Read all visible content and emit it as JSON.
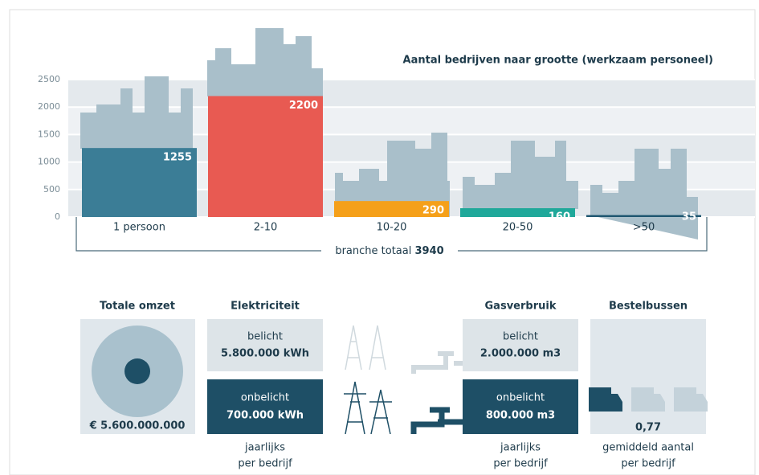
{
  "chart_data": {
    "type": "bar",
    "title": "Aantal bedrijven naar grootte (werkzaam personeel)",
    "categories": [
      "1 persoon",
      "2-10",
      "10-20",
      "20-50",
      ">50"
    ],
    "values": [
      1255,
      2200,
      290,
      160,
      35
    ],
    "colors": [
      "#3b7d96",
      "#e85a52",
      "#f5a01a",
      "#1fa89a",
      "#1e5670"
    ],
    "ylim": [
      0,
      2500
    ],
    "yticks": [
      0,
      500,
      1000,
      1500,
      2000,
      2500
    ],
    "grid": true,
    "total": {
      "label": "branche totaal",
      "value": 3940
    }
  },
  "omzet": {
    "title": "Totale omzet",
    "value": "€ 5.600.000.000"
  },
  "elektriciteit": {
    "title": "Elektriciteit",
    "belicht": {
      "label": "belicht",
      "value": "5.800.000 kWh"
    },
    "onbelicht": {
      "label": "onbelicht",
      "value": "700.000 kWh"
    },
    "note": [
      "jaarlijks",
      "per bedrijf"
    ]
  },
  "gas": {
    "title": "Gasverbruik",
    "belicht": {
      "label": "belicht",
      "value": "2.000.000 m3"
    },
    "onbelicht": {
      "label": "onbelicht",
      "value": "800.000 m3"
    },
    "note": [
      "jaarlijks",
      "per bedrijf"
    ]
  },
  "bestelbussen": {
    "title": "Bestelbussen",
    "value": "0,77",
    "note": [
      "gemiddeld aantal",
      "per bedrijf"
    ]
  }
}
